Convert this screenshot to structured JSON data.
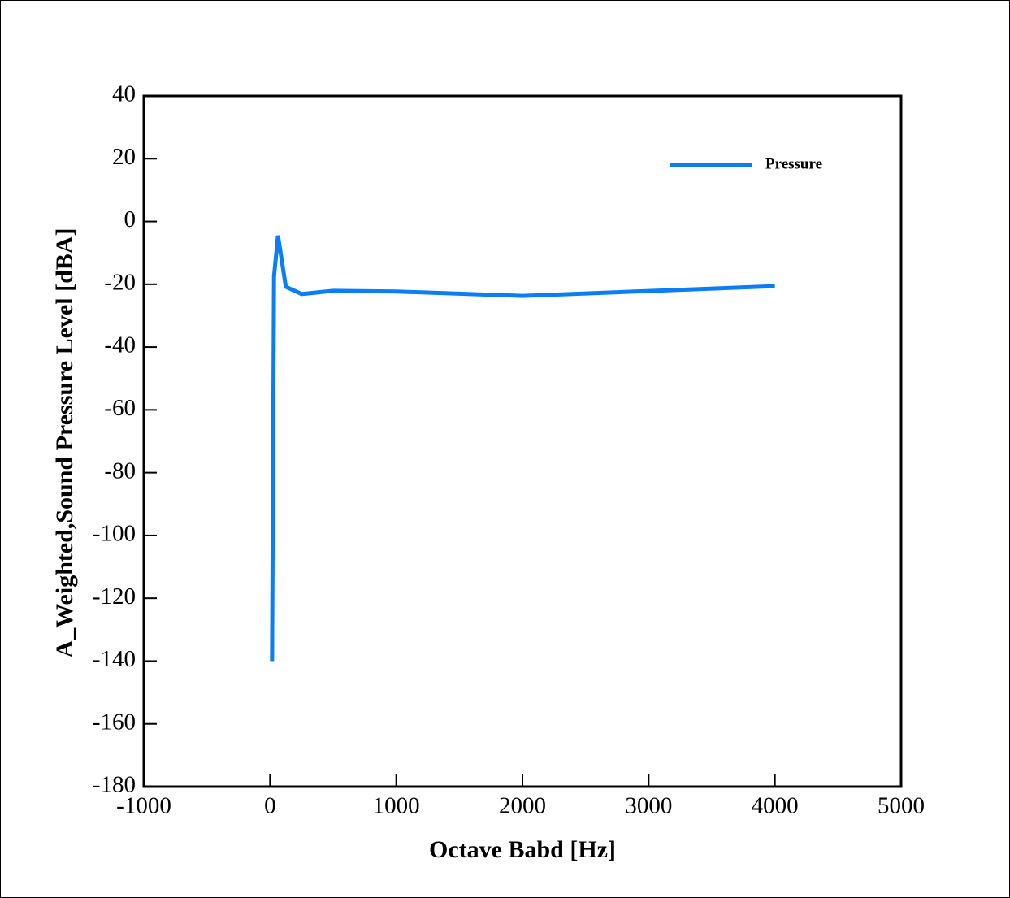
{
  "chart_data": {
    "type": "line",
    "xlabel": "Octave Babd [Hz]",
    "ylabel": "A_Weighted,Sound Pressure Level [dBA]",
    "x": [
      16,
      31.5,
      63,
      125,
      250,
      500,
      1000,
      2000,
      4000
    ],
    "series": [
      {
        "name": "Pressure",
        "color": "#0a7ff5",
        "values": [
          -140,
          -17.5,
          -4.5,
          -20.8,
          -23.1,
          -22.1,
          -22.3,
          -23.7,
          -20.6
        ]
      }
    ],
    "xlim": [
      -1000,
      5000
    ],
    "xticks": [
      -1000,
      0,
      1000,
      2000,
      3000,
      4000,
      5000
    ],
    "ylim": [
      -180,
      40
    ],
    "yticks": [
      -180,
      -160,
      -140,
      -120,
      -100,
      -80,
      -60,
      -40,
      -20,
      0,
      20,
      40
    ],
    "legend": "upper right",
    "grid": false
  }
}
